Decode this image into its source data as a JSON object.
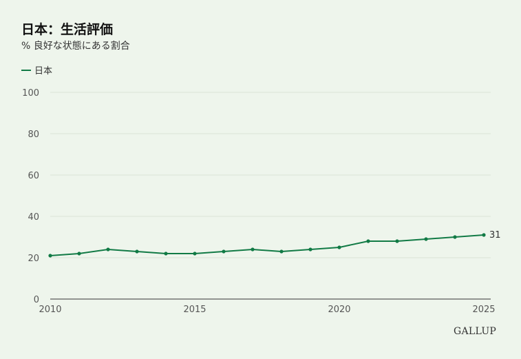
{
  "title": "日本：生活評価",
  "subtitle": "% 良好な状態にある割合",
  "logo": "GALLUP",
  "colors": {
    "series": "#117a45",
    "grid": "#d9e2d6",
    "axis": "#333333"
  },
  "chart_data": {
    "type": "line",
    "title": "日本：生活評価",
    "subtitle": "% 良好な状態にある割合",
    "xlabel": "",
    "ylabel": "",
    "x": [
      2010,
      2011,
      2012,
      2013,
      2014,
      2015,
      2016,
      2017,
      2018,
      2019,
      2020,
      2021,
      2022,
      2023,
      2024,
      2025
    ],
    "series": [
      {
        "name": "日本",
        "values": [
          21,
          22,
          24,
          23,
          22,
          22,
          23,
          24,
          23,
          24,
          25,
          28,
          28,
          29,
          30,
          31
        ]
      }
    ],
    "xlim": [
      2010,
      2025
    ],
    "ylim": [
      0,
      100
    ],
    "yticks": [
      0,
      20,
      40,
      60,
      80,
      100
    ],
    "xticks": [
      2010,
      2015,
      2020,
      2025
    ],
    "grid": true,
    "legend": "top-left",
    "end_label": "31"
  }
}
